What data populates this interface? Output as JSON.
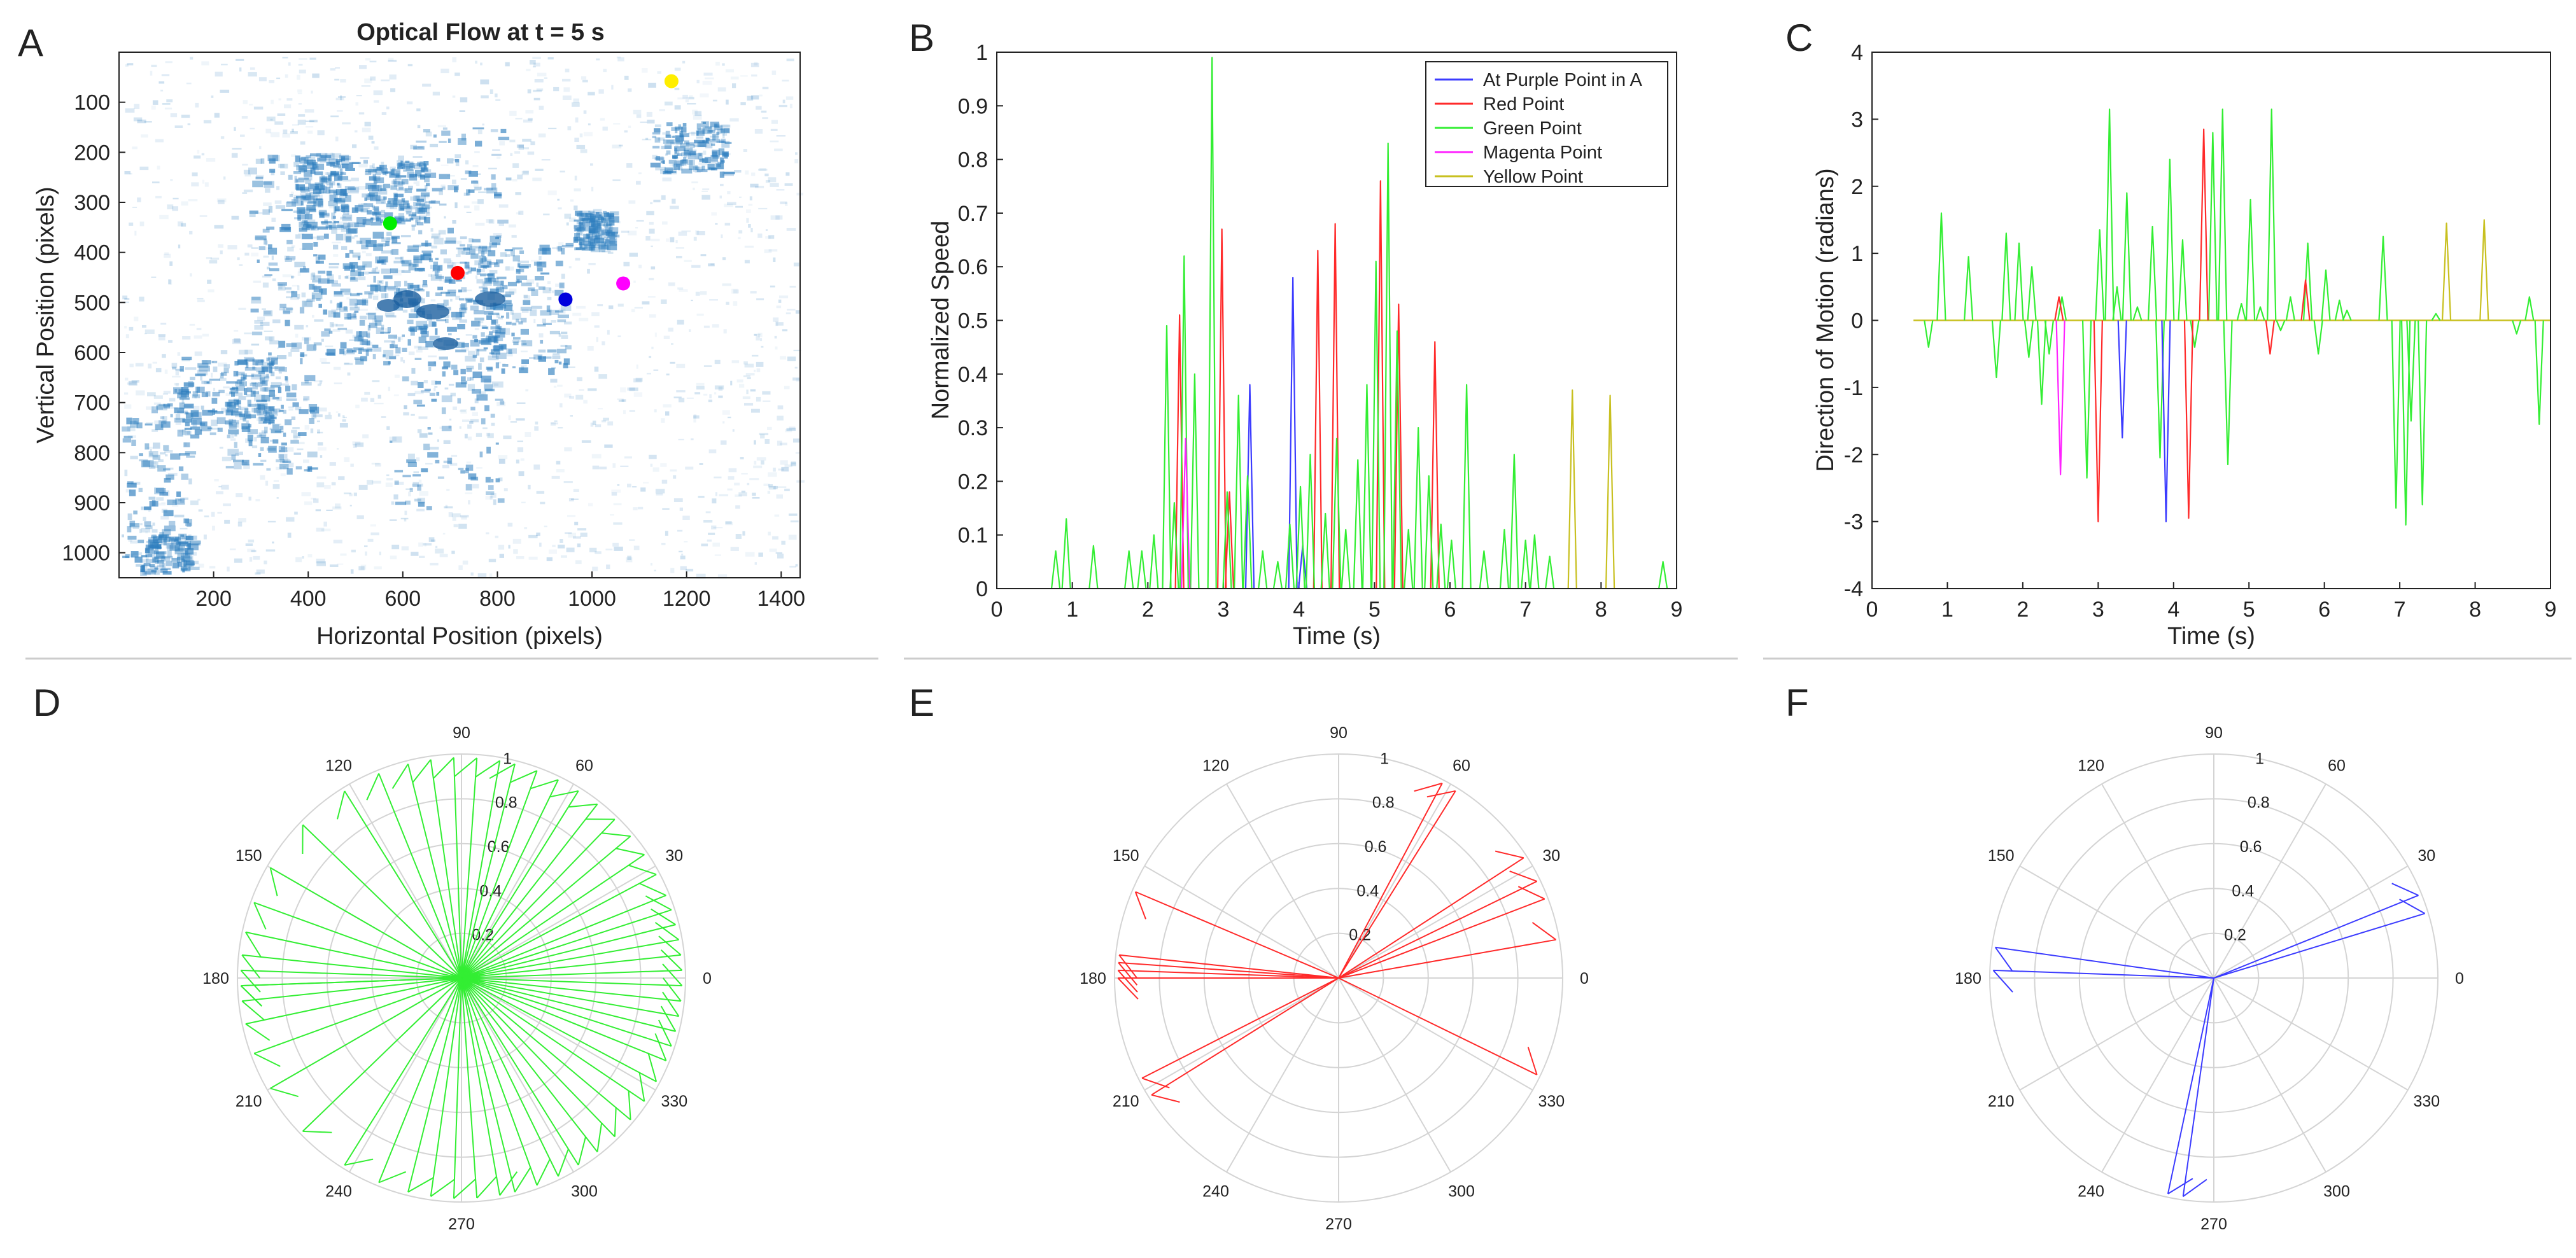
{
  "panels": {
    "A": {
      "letter": "A",
      "title": "Optical Flow at t = 5 s",
      "xlabel": "Horizontal Position (pixels)",
      "ylabel": "Vertical Position (pixels)",
      "xlim": [
        0,
        1440
      ],
      "ylim": [
        1050,
        0
      ],
      "xticks": [
        200,
        400,
        600,
        800,
        1000,
        1200,
        1400
      ],
      "yticks": [
        100,
        200,
        300,
        400,
        500,
        600,
        700,
        800,
        900,
        1000
      ],
      "points": [
        {
          "name": "green-point",
          "color": "#00ee00",
          "x": 573,
          "y": 342
        },
        {
          "name": "red-point",
          "color": "#ff0000",
          "x": 716,
          "y": 441
        },
        {
          "name": "blue-point",
          "color": "#0000dd",
          "x": 944,
          "y": 494
        },
        {
          "name": "magenta-point",
          "color": "#ff00ff",
          "x": 1066,
          "y": 462
        },
        {
          "name": "yellow-point",
          "color": "#ffee00",
          "x": 1168,
          "y": 58
        }
      ]
    },
    "B": {
      "letter": "B"
    },
    "C": {
      "letter": "C"
    },
    "D": {
      "letter": "D"
    },
    "E": {
      "letter": "E"
    },
    "F": {
      "letter": "F"
    }
  },
  "colors": {
    "blue": "#3b3bff",
    "red": "#ff2a2a",
    "green": "#33ee33",
    "magenta": "#ff22ff",
    "yellow": "#c8c020",
    "flow": "#2f7fbf"
  },
  "chart_data": [
    {
      "id": "B",
      "type": "line",
      "xlabel": "Time (s)",
      "ylabel": "Normalized Speed",
      "xlim": [
        0,
        9
      ],
      "ylim": [
        0,
        1
      ],
      "xticks": [
        0,
        1,
        2,
        3,
        4,
        5,
        6,
        7,
        8,
        9
      ],
      "yticks": [
        0,
        0.1,
        0.2,
        0.3,
        0.4,
        0.5,
        0.6,
        0.7,
        0.8,
        0.9,
        1
      ],
      "legend_position": "top-right",
      "series": [
        {
          "name": "At Purple Point in A",
          "color": "#3b3bff",
          "peaks": [
            [
              3.35,
              0.38
            ],
            [
              3.92,
              0.58
            ],
            [
              4.05,
              0.08
            ]
          ]
        },
        {
          "name": "Red Point",
          "color": "#ff2a2a",
          "peaks": [
            [
              2.42,
              0.51
            ],
            [
              2.98,
              0.67
            ],
            [
              3.08,
              0.18
            ],
            [
              4.25,
              0.63
            ],
            [
              4.48,
              0.68
            ],
            [
              5.08,
              0.76
            ],
            [
              5.32,
              0.53
            ],
            [
              5.8,
              0.46
            ]
          ]
        },
        {
          "name": "Green Point",
          "color": "#33ee33",
          "peaks": [
            [
              0.78,
              0.07
            ],
            [
              0.92,
              0.13
            ],
            [
              1.28,
              0.08
            ],
            [
              1.75,
              0.07
            ],
            [
              1.92,
              0.07
            ],
            [
              2.08,
              0.1
            ],
            [
              2.25,
              0.49
            ],
            [
              2.35,
              0.16
            ],
            [
              2.48,
              0.62
            ],
            [
              2.62,
              0.4
            ],
            [
              2.85,
              0.99
            ],
            [
              3.05,
              0.18
            ],
            [
              3.2,
              0.36
            ],
            [
              3.32,
              0.21
            ],
            [
              3.52,
              0.07
            ],
            [
              3.72,
              0.05
            ],
            [
              3.88,
              0.12
            ],
            [
              4.02,
              0.19
            ],
            [
              4.15,
              0.25
            ],
            [
              4.35,
              0.14
            ],
            [
              4.5,
              0.28
            ],
            [
              4.62,
              0.11
            ],
            [
              4.78,
              0.24
            ],
            [
              4.9,
              0.38
            ],
            [
              5.02,
              0.61
            ],
            [
              5.18,
              0.83
            ],
            [
              5.3,
              0.48
            ],
            [
              5.45,
              0.11
            ],
            [
              5.58,
              0.3
            ],
            [
              5.72,
              0.21
            ],
            [
              5.88,
              0.12
            ],
            [
              6.02,
              0.09
            ],
            [
              6.22,
              0.38
            ],
            [
              6.45,
              0.07
            ],
            [
              6.72,
              0.11
            ],
            [
              6.85,
              0.25
            ],
            [
              7.0,
              0.09
            ],
            [
              7.12,
              0.1
            ],
            [
              7.32,
              0.06
            ],
            [
              8.82,
              0.05
            ]
          ]
        },
        {
          "name": "Magenta Point",
          "color": "#ff22ff",
          "peaks": [
            [
              2.5,
              0.28
            ]
          ]
        },
        {
          "name": "Yellow Point",
          "color": "#c8c020",
          "peaks": [
            [
              7.62,
              0.37
            ],
            [
              8.12,
              0.36
            ]
          ]
        }
      ]
    },
    {
      "id": "C",
      "type": "line",
      "xlabel": "Time (s)",
      "ylabel": "Direction of Motion (radians)",
      "xlim": [
        0,
        9
      ],
      "ylim": [
        -4,
        4
      ],
      "xticks": [
        0,
        1,
        2,
        3,
        4,
        5,
        6,
        7,
        8,
        9
      ],
      "yticks": [
        -4,
        -3,
        -2,
        -1,
        0,
        1,
        2,
        3,
        4
      ],
      "baseline": {
        "color": "#c8c020",
        "x": [
          0.55,
          9.0
        ]
      },
      "series": [
        {
          "name": "Green Point",
          "color": "#33ee33",
          "peaks": [
            [
              0.75,
              -0.4
            ],
            [
              0.92,
              1.6
            ],
            [
              1.28,
              0.95
            ],
            [
              1.65,
              -0.85
            ],
            [
              1.78,
              1.3
            ],
            [
              1.95,
              1.15
            ],
            [
              2.08,
              -0.55
            ],
            [
              2.12,
              0.8
            ],
            [
              2.25,
              -1.25
            ],
            [
              2.35,
              -0.5
            ],
            [
              2.52,
              0.35
            ],
            [
              2.85,
              -2.35
            ],
            [
              3.02,
              1.35
            ],
            [
              3.15,
              3.15
            ],
            [
              3.25,
              0.5
            ],
            [
              3.38,
              1.9
            ],
            [
              3.52,
              0.2
            ],
            [
              3.72,
              1.4
            ],
            [
              3.82,
              -2.05
            ],
            [
              3.95,
              2.4
            ],
            [
              4.12,
              1.2
            ],
            [
              4.28,
              -0.4
            ],
            [
              4.52,
              2.8
            ],
            [
              4.65,
              3.15
            ],
            [
              4.72,
              -2.15
            ],
            [
              4.9,
              0.25
            ],
            [
              5.02,
              1.8
            ],
            [
              5.15,
              0.2
            ],
            [
              5.3,
              3.15
            ],
            [
              5.42,
              -0.15
            ],
            [
              5.55,
              0.35
            ],
            [
              5.78,
              1.15
            ],
            [
              5.92,
              -0.5
            ],
            [
              6.02,
              0.75
            ],
            [
              6.2,
              0.3
            ],
            [
              6.3,
              0.15
            ],
            [
              6.78,
              1.25
            ],
            [
              6.95,
              -2.8
            ],
            [
              7.08,
              -3.05
            ],
            [
              7.15,
              -1.5
            ],
            [
              7.3,
              -2.75
            ],
            [
              7.48,
              0.1
            ],
            [
              8.55,
              -0.2
            ],
            [
              8.72,
              0.35
            ],
            [
              8.85,
              -1.55
            ]
          ]
        },
        {
          "name": "Red Point",
          "color": "#ff2a2a",
          "peaks": [
            [
              2.48,
              0.35
            ],
            [
              3.0,
              -3.0
            ],
            [
              4.2,
              -2.95
            ],
            [
              4.4,
              2.85
            ],
            [
              5.28,
              -0.5
            ],
            [
              5.75,
              0.6
            ]
          ]
        },
        {
          "name": "At Purple Point in A",
          "color": "#3b3bff",
          "peaks": [
            [
              3.32,
              -1.75
            ],
            [
              3.9,
              -3.0
            ]
          ]
        },
        {
          "name": "Magenta Point",
          "color": "#ff22ff",
          "peaks": [
            [
              2.5,
              -2.3
            ]
          ]
        },
        {
          "name": "Yellow Point",
          "color": "#c8c020",
          "peaks": [
            [
              7.62,
              1.45
            ],
            [
              8.12,
              1.5
            ]
          ]
        }
      ]
    },
    {
      "id": "D",
      "type": "polar",
      "color": "#33ee33",
      "rlim": [
        0,
        1
      ],
      "r_tick_labels": [
        "0.2",
        "0.4",
        "0.6",
        "0.8",
        "1"
      ],
      "theta_tick_labels": [
        "0",
        "30",
        "60",
        "90",
        "120",
        "150",
        "180",
        "210",
        "240",
        "270",
        "300",
        "330"
      ],
      "spikes_deg": [
        2,
        -2,
        6,
        -6,
        10,
        -10,
        14,
        -14,
        18,
        -18,
        22,
        -22,
        28,
        -28,
        34,
        -34,
        40,
        -40,
        46,
        -46,
        52,
        -52,
        58,
        -58,
        64,
        -64,
        70,
        -70,
        76,
        -76,
        80,
        -80,
        86,
        -86,
        92,
        -92,
        98,
        -98,
        104,
        -104,
        112,
        -112,
        122,
        -122,
        136,
        -136,
        150,
        -150,
        160,
        -160,
        168,
        -168,
        174,
        -174,
        178,
        -178,
        182
      ]
    },
    {
      "id": "E",
      "type": "polar",
      "color": "#ff2a2a",
      "rlim": [
        0,
        1
      ],
      "r_tick_labels": [
        "0.2",
        "0.4",
        "0.6",
        "0.8",
        "1"
      ],
      "theta_tick_labels": [
        "0",
        "30",
        "60",
        "90",
        "120",
        "150",
        "180",
        "210",
        "240",
        "270",
        "300",
        "330"
      ],
      "spikes_deg": [
        10,
        21,
        26,
        33,
        58,
        62,
        157,
        174,
        176,
        178,
        180,
        207,
        212,
        334
      ]
    },
    {
      "id": "F",
      "type": "polar",
      "color": "#3b3bff",
      "rlim": [
        0,
        1
      ],
      "r_tick_labels": [
        "0.2",
        "0.4",
        "0.6",
        "0.8",
        "1"
      ],
      "theta_tick_labels": [
        "0",
        "30",
        "60",
        "90",
        "120",
        "150",
        "180",
        "210",
        "240",
        "270",
        "300",
        "330"
      ],
      "spikes_deg": [
        17,
        22,
        172,
        178,
        258,
        262
      ]
    }
  ]
}
